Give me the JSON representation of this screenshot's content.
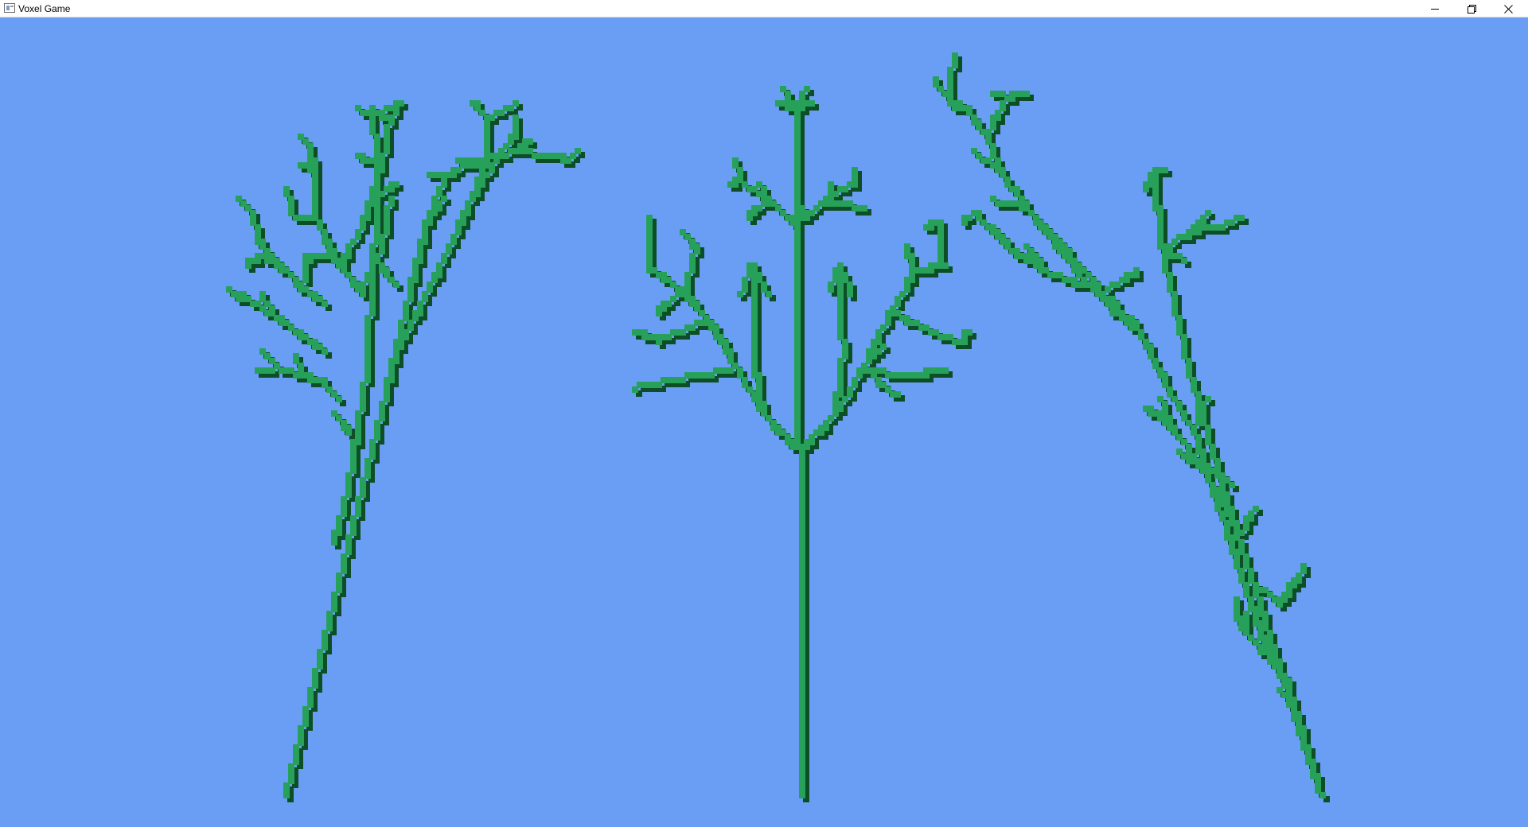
{
  "window": {
    "title": "Voxel Game",
    "icons": {
      "app": "app-window-icon",
      "minimize": "minimize-icon",
      "restore": "restore-icon",
      "close": "close-icon"
    }
  },
  "scene": {
    "background_color": "#6a9ef4",
    "foliage_color": "#27a15a",
    "shade_color": "#0d4e27",
    "objects": [
      "voxel-tree-left",
      "voxel-tree-center",
      "voxel-tree-right"
    ]
  }
}
